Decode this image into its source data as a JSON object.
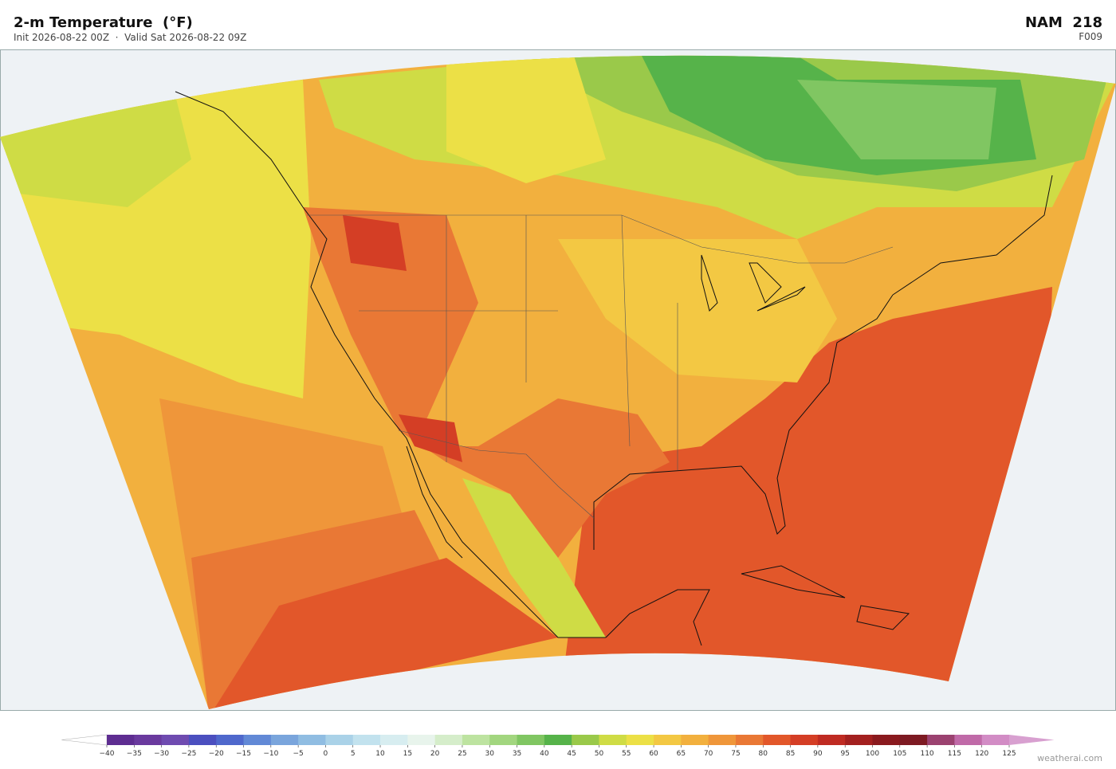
{
  "header": {
    "title": "2-m Temperature  (°F)",
    "subtitle": "Init 2026-08-22 00Z  ·  Valid Sat 2026-08-22 09Z",
    "model": "NAM  218",
    "forecast_hour": "F009"
  },
  "colorbar": {
    "ticks": [
      {
        "value": -40,
        "label": "−40"
      },
      {
        "value": -35,
        "label": "−35"
      },
      {
        "value": -30,
        "label": "−30"
      },
      {
        "value": -25,
        "label": "−25"
      },
      {
        "value": -20,
        "label": "−20"
      },
      {
        "value": -15,
        "label": "−15"
      },
      {
        "value": -10,
        "label": "−10"
      },
      {
        "value": -5,
        "label": "−5"
      },
      0,
      5,
      10,
      15,
      20,
      25,
      30,
      35,
      40,
      45,
      50,
      55,
      60,
      65,
      70,
      75,
      80,
      85,
      90,
      95,
      100,
      105,
      110,
      115,
      120,
      125
    ],
    "colors": [
      "#5e2d91",
      "#6a3a9e",
      "#6f4bb0",
      "#4b4fbf",
      "#4f68cc",
      "#6289d6",
      "#7aa5dc",
      "#90bde2",
      "#aad2e8",
      "#c2e2ee",
      "#d7edf0",
      "#e8f4ec",
      "#d5edca",
      "#bde3a0",
      "#a2d67f",
      "#80c662",
      "#56b34a",
      "#9ac94a",
      "#cfdc45",
      "#ece046",
      "#f3c843",
      "#f2b03e",
      "#ef963a",
      "#e97835",
      "#e2572a",
      "#d43e25",
      "#bf2b22",
      "#a3201f",
      "#8a1a1e",
      "#7d1a22",
      "#9b4270",
      "#c06aa8",
      "#d28cc5"
    ],
    "under_color": "#ffffff",
    "over_color": "#d8a0d0"
  },
  "footer": {
    "credit": "weatherai.com"
  }
}
